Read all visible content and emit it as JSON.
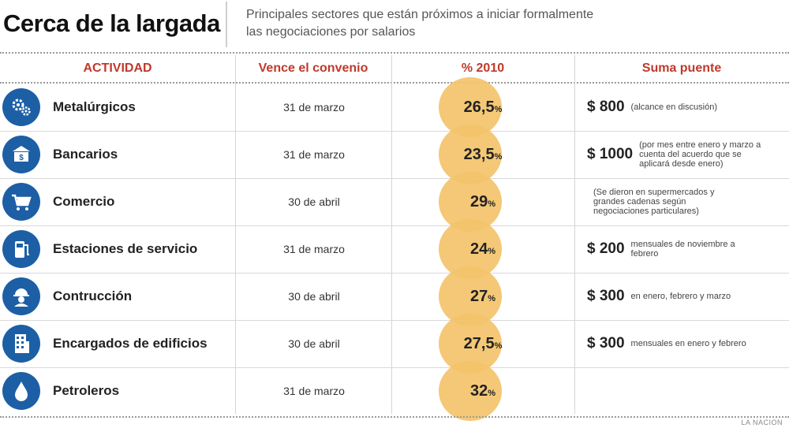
{
  "header": {
    "title": "Cerca de la largada",
    "subtitle_line1": "Principales sectores que están próximos a iniciar formalmente",
    "subtitle_line2": "las negociaciones por salarios"
  },
  "columns": {
    "activity": "ACTIVIDAD",
    "expires": "Vence el convenio",
    "percent": "% 2010",
    "bridge": "Suma puente"
  },
  "rows": [
    {
      "icon": "gears-icon",
      "activity": "Metalúrgicos",
      "date": "31 de marzo",
      "percent": "26,5",
      "unit": "%",
      "amount": "$ 800",
      "note": "(alcance en discusión)"
    },
    {
      "icon": "bank-icon",
      "activity": "Bancarios",
      "date": "31 de marzo",
      "percent": "23,5",
      "unit": "%",
      "amount": "$ 1000",
      "note": "(por mes entre enero y marzo a cuenta del acuerdo que se aplicará desde enero)"
    },
    {
      "icon": "shopping-cart-icon",
      "activity": "Comercio",
      "date": "30 de abril",
      "percent": "29",
      "unit": "%",
      "amount": "",
      "note": "(Se dieron en supermercados y grandes cadenas según negociaciones particulares)"
    },
    {
      "icon": "fuel-pump-icon",
      "activity": "Estaciones de servicio",
      "date": "31 de marzo",
      "percent": "24",
      "unit": "%",
      "amount": "$ 200",
      "note": "mensuales de noviembre a febrero"
    },
    {
      "icon": "hard-hat-worker-icon",
      "activity": "Contrucción",
      "date": "30 de abril",
      "percent": "27",
      "unit": "%",
      "amount": "$ 300",
      "note": "en enero, febrero y marzo"
    },
    {
      "icon": "building-icon",
      "activity": "Encargados de edificios",
      "date": "30 de abril",
      "percent": "27,5",
      "unit": "%",
      "amount": "$ 300",
      "note": "mensuales en enero y febrero"
    },
    {
      "icon": "oil-drop-icon",
      "activity": "Petroleros",
      "date": "31 de marzo",
      "percent": "32",
      "unit": "%",
      "amount": "",
      "note": ""
    }
  ],
  "source": "LA NACION",
  "colors": {
    "accent_header": "#c0392b",
    "icon_blue": "#1d5fa5",
    "highlight": "#f3c36a"
  }
}
